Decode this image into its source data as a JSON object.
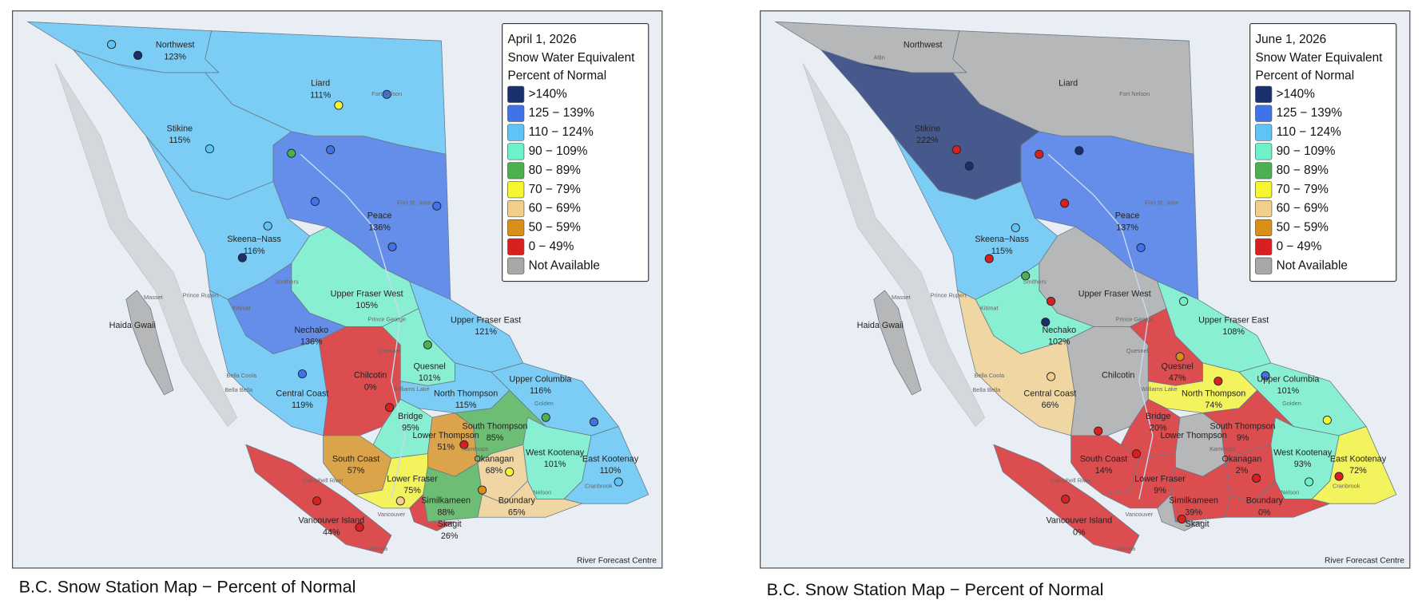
{
  "maps": [
    {
      "legend": {
        "title_lines": [
          "April 1, 2026",
          "Snow Water Equivalent",
          "Percent of Normal"
        ],
        "items": [
          {
            "label": ">140%",
            "color": "#1a2f6e"
          },
          {
            "label": "125 − 139%",
            "color": "#3f73e6"
          },
          {
            "label": "110 − 124%",
            "color": "#5ec4f5"
          },
          {
            "label": "90 − 109%",
            "color": "#6ef0c8"
          },
          {
            "label": "80 − 89%",
            "color": "#4caf50"
          },
          {
            "label": "70 − 79%",
            "color": "#f5f532"
          },
          {
            "label": "60 − 69%",
            "color": "#f2cf8a"
          },
          {
            "label": "50 − 59%",
            "color": "#d8901a"
          },
          {
            "label": "0 − 49%",
            "color": "#d92020"
          },
          {
            "label": "Not Available",
            "color": "#a8a8a8"
          }
        ]
      },
      "regions": [
        {
          "name": "Northwest",
          "pct": "123%",
          "color": "#5ec4f5"
        },
        {
          "name": "Liard",
          "pct": "111%",
          "color": "#5ec4f5"
        },
        {
          "name": "Stikine",
          "pct": "115%",
          "color": "#5ec4f5"
        },
        {
          "name": "Peace",
          "pct": "136%",
          "color": "#3f73e6"
        },
        {
          "name": "Skeena−Nass",
          "pct": "116%",
          "color": "#5ec4f5"
        },
        {
          "name": "Upper Fraser West",
          "pct": "105%",
          "color": "#6ef0c8"
        },
        {
          "name": "Nechako",
          "pct": "136%",
          "color": "#3f73e6"
        },
        {
          "name": "Upper Fraser East",
          "pct": "121%",
          "color": "#5ec4f5"
        },
        {
          "name": "Central Coast",
          "pct": "119%",
          "color": "#5ec4f5"
        },
        {
          "name": "Chilcotin",
          "pct": "0%",
          "color": "#d92020"
        },
        {
          "name": "Quesnel",
          "pct": "101%",
          "color": "#6ef0c8"
        },
        {
          "name": "North Thompson",
          "pct": "115%",
          "color": "#5ec4f5"
        },
        {
          "name": "Upper Columbia",
          "pct": "116%",
          "color": "#5ec4f5"
        },
        {
          "name": "Bridge",
          "pct": "95%",
          "color": "#6ef0c8"
        },
        {
          "name": "Lower Thompson",
          "pct": "51%",
          "color": "#d8901a"
        },
        {
          "name": "South Thompson",
          "pct": "85%",
          "color": "#4caf50"
        },
        {
          "name": "Okanagan",
          "pct": "68%",
          "color": "#f2cf8a"
        },
        {
          "name": "West Kootenay",
          "pct": "101%",
          "color": "#6ef0c8"
        },
        {
          "name": "East Kootenay",
          "pct": "110%",
          "color": "#5ec4f5"
        },
        {
          "name": "South Coast",
          "pct": "57%",
          "color": "#d8901a"
        },
        {
          "name": "Lower Fraser",
          "pct": "75%",
          "color": "#f5f532"
        },
        {
          "name": "Similkameen",
          "pct": "88%",
          "color": "#4caf50"
        },
        {
          "name": "Boundary",
          "pct": "65%",
          "color": "#f2cf8a"
        },
        {
          "name": "Skagit",
          "pct": "26%",
          "color": "#d92020"
        },
        {
          "name": "Vancouver Island",
          "pct": "44%",
          "color": "#d92020"
        },
        {
          "name": "Haida Gwaii",
          "color": "#a8a8a8"
        }
      ],
      "towns": [
        "Fort Nelson",
        "Fort St. John",
        "Prince George",
        "Prince Rupert",
        "Masset",
        "Kitimat",
        "Smithers",
        "Bella Coola",
        "Bella Bella",
        "Quesnel",
        "Williams Lake",
        "Kamloops",
        "Golden",
        "Nelson",
        "Cranbrook",
        "Vancouver",
        "Victoria",
        "Campbell River"
      ],
      "credit": "River Forecast Centre",
      "caption": "B.C. Snow Station Map − Percent of Normal"
    },
    {
      "legend": {
        "title_lines": [
          "June 1, 2026",
          "Snow Water Equivalent",
          "Percent of Normal"
        ],
        "items": [
          {
            "label": ">140%",
            "color": "#1a2f6e"
          },
          {
            "label": "125 − 139%",
            "color": "#3f73e6"
          },
          {
            "label": "110 − 124%",
            "color": "#5ec4f5"
          },
          {
            "label": "90 − 109%",
            "color": "#6ef0c8"
          },
          {
            "label": "80 − 89%",
            "color": "#4caf50"
          },
          {
            "label": "70 − 79%",
            "color": "#f5f532"
          },
          {
            "label": "60 − 69%",
            "color": "#f2cf8a"
          },
          {
            "label": "50 − 59%",
            "color": "#d8901a"
          },
          {
            "label": "0 − 49%",
            "color": "#d92020"
          },
          {
            "label": "Not Available",
            "color": "#a8a8a8"
          }
        ]
      },
      "regions": [
        {
          "name": "Northwest",
          "color": "#a8a8a8"
        },
        {
          "name": "Liard",
          "color": "#a8a8a8"
        },
        {
          "name": "Stikine",
          "pct": "222%",
          "color": "#1a2f6e"
        },
        {
          "name": "Peace",
          "pct": "137%",
          "color": "#3f73e6"
        },
        {
          "name": "Skeena−Nass",
          "pct": "115%",
          "color": "#5ec4f5"
        },
        {
          "name": "Upper Fraser West",
          "color": "#a8a8a8"
        },
        {
          "name": "Nechako",
          "pct": "102%",
          "color": "#6ef0c8"
        },
        {
          "name": "Upper Fraser East",
          "pct": "108%",
          "color": "#6ef0c8"
        },
        {
          "name": "Central Coast",
          "pct": "66%",
          "color": "#f2cf8a"
        },
        {
          "name": "Chilcotin",
          "color": "#a8a8a8"
        },
        {
          "name": "Quesnel",
          "pct": "47%",
          "color": "#d92020"
        },
        {
          "name": "North Thompson",
          "pct": "74%",
          "color": "#f5f532"
        },
        {
          "name": "Upper Columbia",
          "pct": "101%",
          "color": "#6ef0c8"
        },
        {
          "name": "Bridge",
          "pct": "20%",
          "color": "#d92020"
        },
        {
          "name": "Lower Thompson",
          "color": "#a8a8a8"
        },
        {
          "name": "South Thompson",
          "pct": "9%",
          "color": "#d92020"
        },
        {
          "name": "Okanagan",
          "pct": "2%",
          "color": "#d92020"
        },
        {
          "name": "West Kootenay",
          "pct": "93%",
          "color": "#6ef0c8"
        },
        {
          "name": "East Kootenay",
          "pct": "72%",
          "color": "#f5f532"
        },
        {
          "name": "South Coast",
          "pct": "14%",
          "color": "#d92020"
        },
        {
          "name": "Lower Fraser",
          "pct": "9%",
          "color": "#d92020"
        },
        {
          "name": "Similkameen",
          "pct": "39%",
          "color": "#d92020"
        },
        {
          "name": "Boundary",
          "pct": "0%",
          "color": "#d92020"
        },
        {
          "name": "Skagit",
          "color": "#a8a8a8"
        },
        {
          "name": "Vancouver Island",
          "pct": "0%",
          "color": "#d92020"
        },
        {
          "name": "Haida Gwaii",
          "color": "#a8a8a8"
        }
      ],
      "towns": [
        "Fort Nelson",
        "Fort St. John",
        "Prince George",
        "Prince Rupert",
        "Masset",
        "Kitimat",
        "Smithers",
        "Bella Coola",
        "Bella Bella",
        "Quesnel",
        "Williams Lake",
        "Kamloops",
        "Golden",
        "Nelson",
        "Cranbrook",
        "Vancouver",
        "Victoria",
        "Campbell River",
        "Atlin"
      ],
      "credit": "River Forecast Centre",
      "caption": "B.C. Snow Station Map − Percent of Normal"
    }
  ]
}
